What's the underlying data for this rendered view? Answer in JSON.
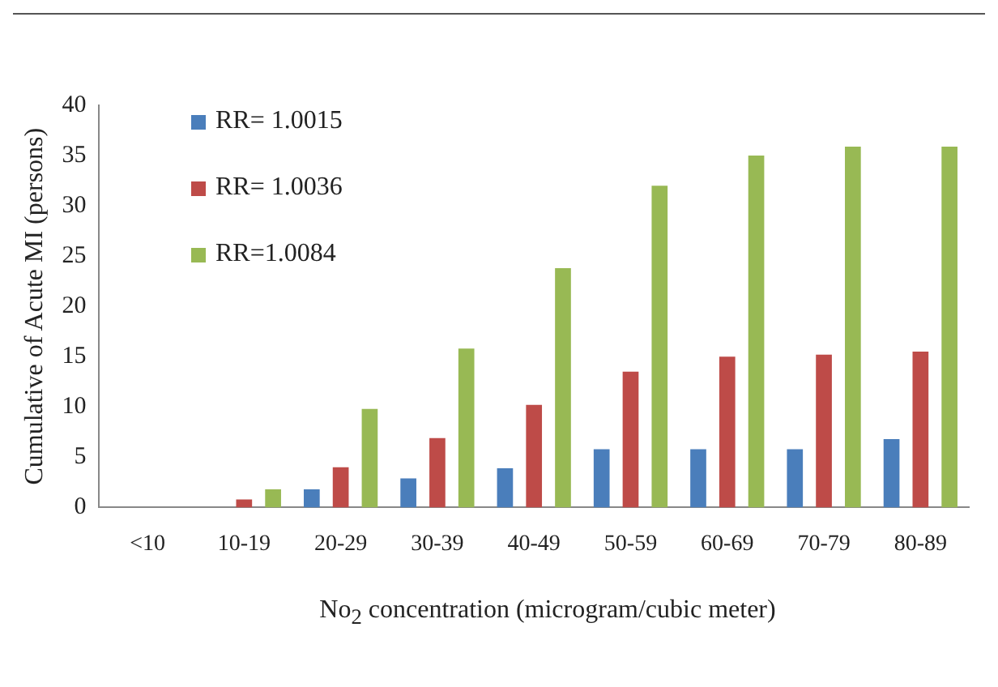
{
  "chart_data": {
    "type": "bar",
    "xlabel": "No$_{2}$ concentration (microgram/cubic meter)",
    "ylabel": "Cumulative of Acute MI (persons)",
    "categories": [
      "<10",
      "10-19",
      "20-29",
      "30-39",
      "40-49",
      "50-59",
      "60-69",
      "70-79",
      "80-89"
    ],
    "series": [
      {
        "name": "RR= 1.0015",
        "color": "#4a7ebb",
        "values": [
          0,
          0,
          1.8,
          2.9,
          3.9,
          5.8,
          5.8,
          5.8,
          6.8
        ]
      },
      {
        "name": "RR= 1.0036",
        "color": "#be4b48",
        "values": [
          0,
          0.8,
          4,
          6.9,
          10.2,
          13.5,
          15,
          15.2,
          15.5
        ]
      },
      {
        "name": "RR=1.0084",
        "color": "#98b954",
        "values": [
          0,
          1.8,
          9.8,
          15.8,
          23.8,
          32,
          35,
          35.9,
          35.9
        ]
      }
    ],
    "ylim": [
      0,
      40
    ],
    "yticks": [
      0,
      5,
      10,
      15,
      20,
      25,
      30,
      35,
      40
    ],
    "legend": "top left"
  }
}
